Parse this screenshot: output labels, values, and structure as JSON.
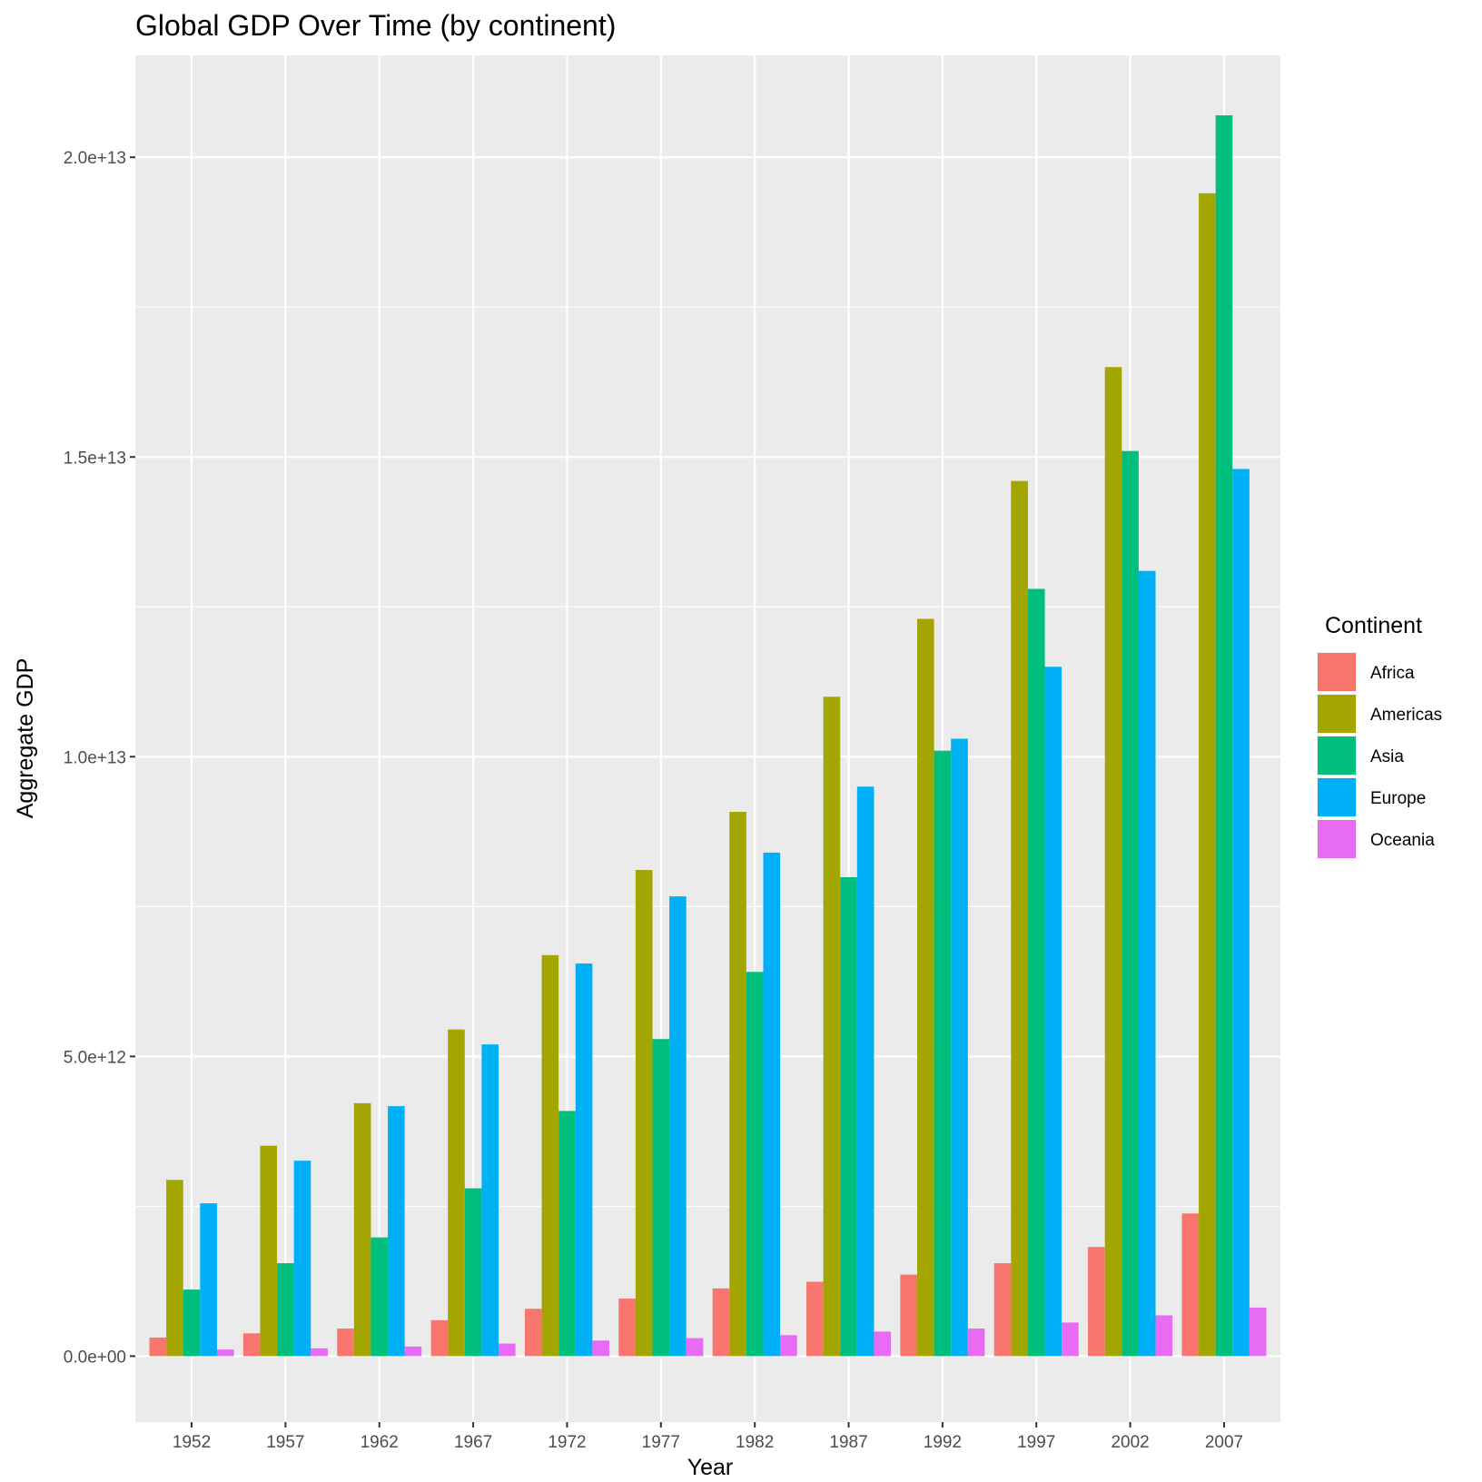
{
  "chart_data": {
    "type": "bar",
    "title": "Global GDP Over Time (by continent)",
    "xlabel": "Year",
    "ylabel": "Aggregate GDP",
    "categories": [
      "1952",
      "1957",
      "1962",
      "1967",
      "1972",
      "1977",
      "1982",
      "1987",
      "1992",
      "1997",
      "2002",
      "2007"
    ],
    "ylim": [
      -1100000000000.0,
      21700000000000.0
    ],
    "yticks": [
      0,
      5000000000000.0,
      10000000000000.0,
      15000000000000.0,
      20000000000000.0
    ],
    "ytick_labels": [
      "0.0e+00",
      "5.0e+12",
      "1.0e+13",
      "1.5e+13",
      "2.0e+13"
    ],
    "grid": true,
    "legend": {
      "title": "Continent",
      "position": "right"
    },
    "series": [
      {
        "name": "Africa",
        "color": "#F8766D",
        "values": [
          310000000000.0,
          380000000000.0,
          460000000000.0,
          600000000000.0,
          790000000000.0,
          960000000000.0,
          1130000000000.0,
          1240000000000.0,
          1360000000000.0,
          1550000000000.0,
          1820000000000.0,
          2380000000000.0
        ]
      },
      {
        "name": "Americas",
        "color": "#A3A500",
        "values": [
          2940000000000.0,
          3510000000000.0,
          4220000000000.0,
          5450000000000.0,
          6690000000000.0,
          8110000000000.0,
          9080000000000.0,
          11000000000000.0,
          12300000000000.0,
          14600000000000.0,
          16500000000000.0,
          19400000000000.0
        ]
      },
      {
        "name": "Asia",
        "color": "#00BF7D",
        "values": [
          1110000000000.0,
          1550000000000.0,
          1980000000000.0,
          2800000000000.0,
          4090000000000.0,
          5290000000000.0,
          6410000000000.0,
          7990000000000.0,
          10100000000000.0,
          12800000000000.0,
          15100000000000.0,
          20700000000000.0
        ]
      },
      {
        "name": "Europe",
        "color": "#00B0F6",
        "values": [
          2550000000000.0,
          3260000000000.0,
          4170000000000.0,
          5200000000000.0,
          6550000000000.0,
          7670000000000.0,
          8400000000000.0,
          9500000000000.0,
          10300000000000.0,
          11500000000000.0,
          13100000000000.0,
          14800000000000.0
        ]
      },
      {
        "name": "Oceania",
        "color": "#E76BF3",
        "values": [
          110000000000.0,
          130000000000.0,
          160000000000.0,
          210000000000.0,
          260000000000.0,
          300000000000.0,
          350000000000.0,
          410000000000.0,
          460000000000.0,
          560000000000.0,
          680000000000.0,
          810000000000.0
        ]
      }
    ]
  }
}
